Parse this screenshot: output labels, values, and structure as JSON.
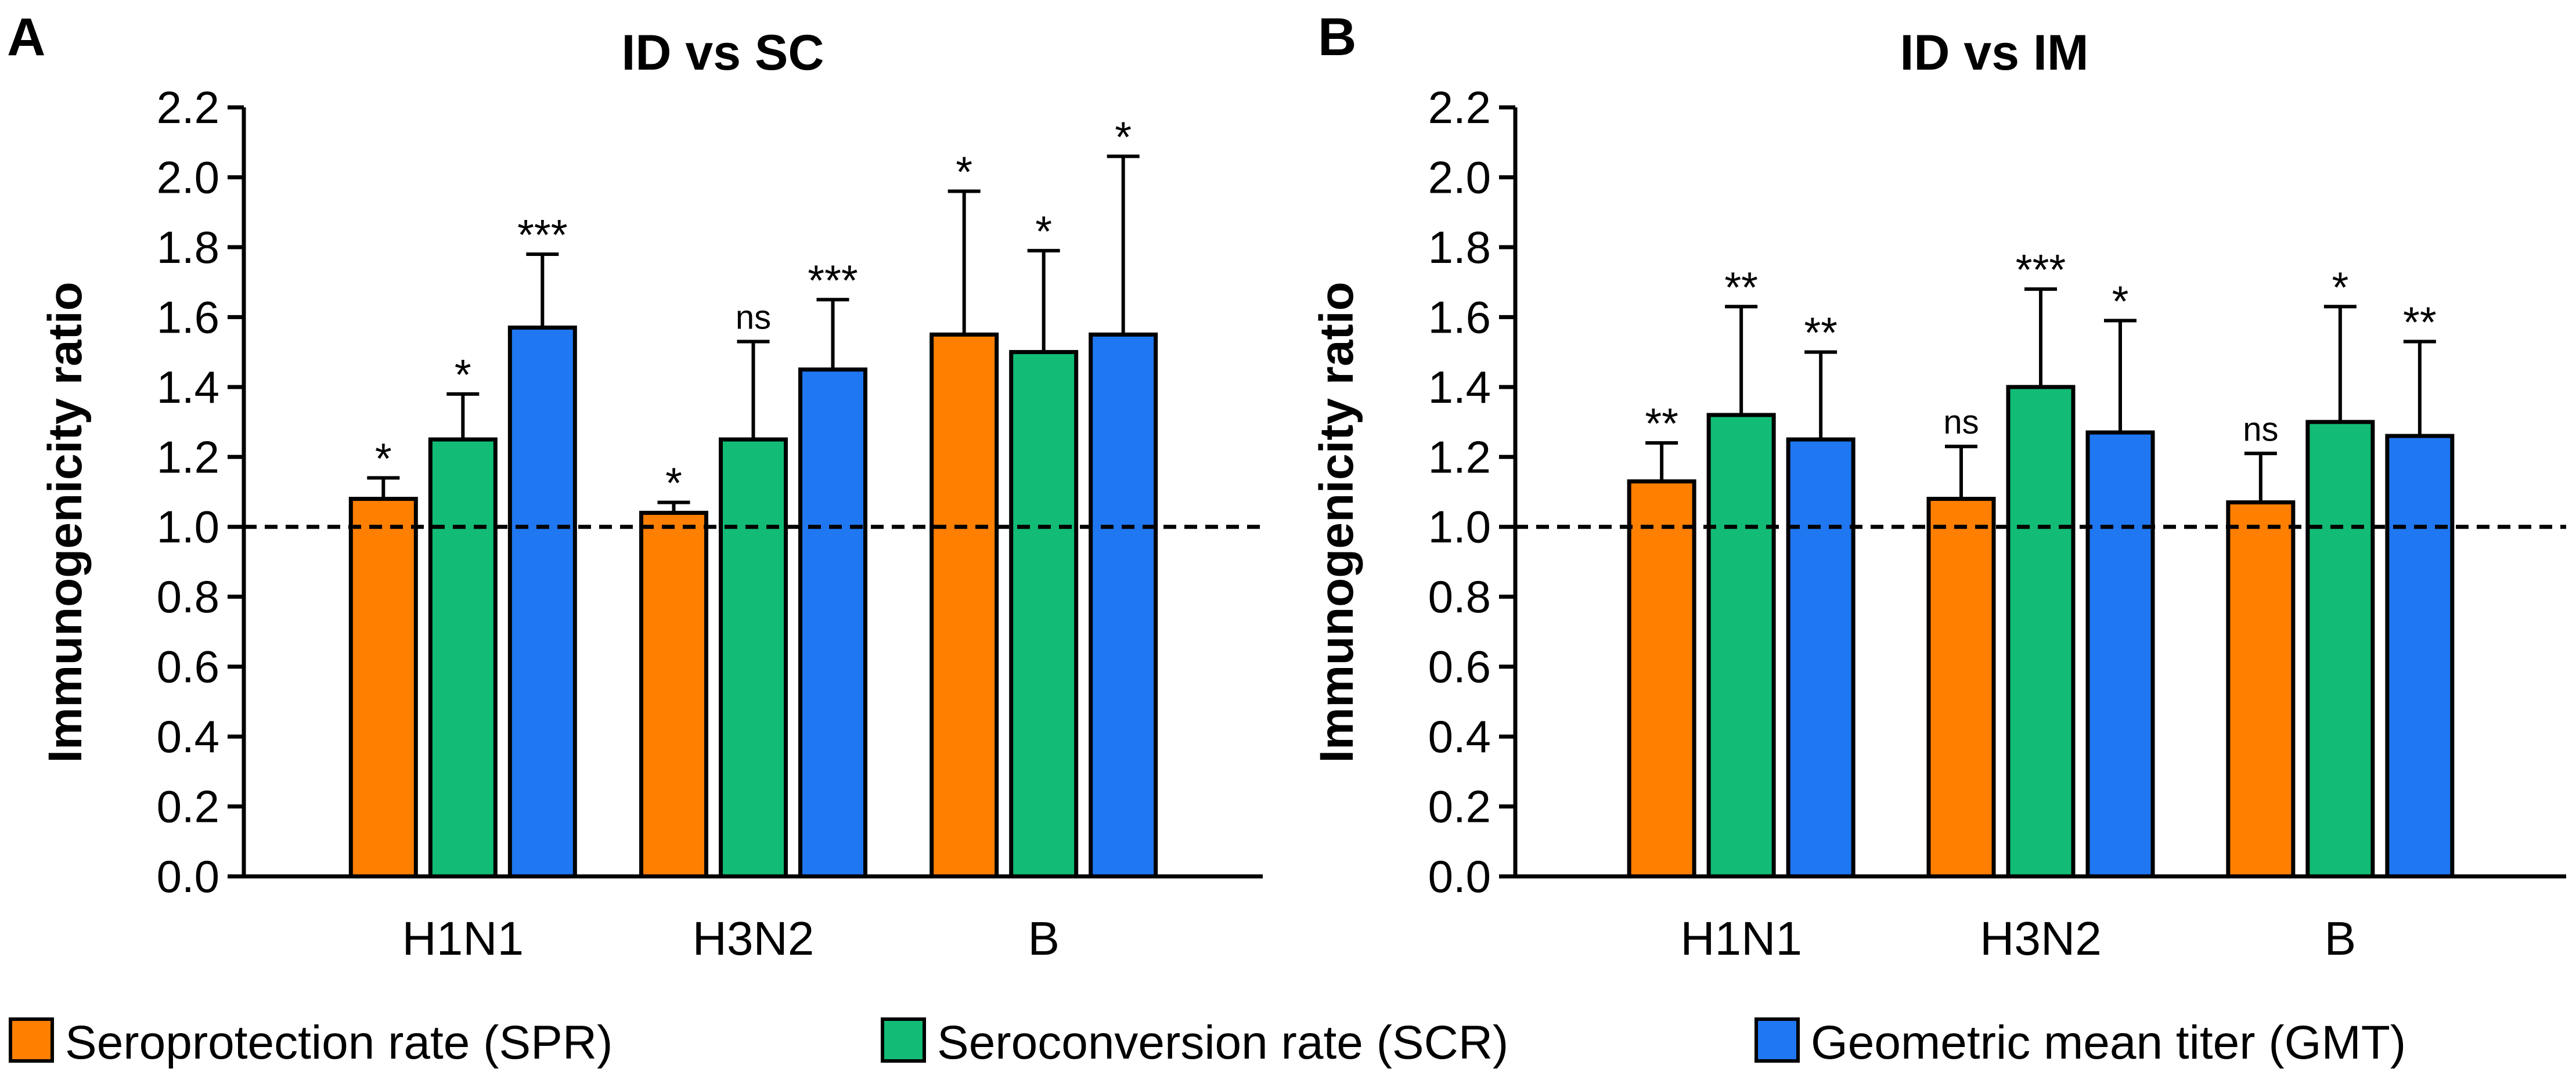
{
  "colors": {
    "spr": "#ff7f00",
    "scr": "#12bc76",
    "gmt": "#1f77f2",
    "axis": "#000000",
    "bar_edge": "#000000"
  },
  "legend": {
    "items": [
      {
        "key": "spr",
        "label": "Seroprotection rate (SPR)"
      },
      {
        "key": "scr",
        "label": "Seroconversion rate (SCR)"
      },
      {
        "key": "gmt",
        "label": "Geometric mean titer (GMT)"
      }
    ]
  },
  "chart_data": [
    {
      "panel": "A",
      "type": "bar",
      "title": "ID vs SC",
      "xlabel": "",
      "ylabel": "Immunogenicity ratio",
      "ylim": [
        0.0,
        2.2
      ],
      "yticks": [
        "0.0",
        "0.2",
        "0.4",
        "0.6",
        "0.8",
        "1.0",
        "1.2",
        "1.4",
        "1.6",
        "1.8",
        "2.0",
        "2.2"
      ],
      "reference_line": 1.0,
      "categories": [
        "H1N1",
        "H3N2",
        "B"
      ],
      "series": [
        {
          "key": "spr",
          "name": "Seroprotection rate (SPR)",
          "values": [
            1.08,
            1.04,
            1.55
          ],
          "error_upper": [
            1.14,
            1.07,
            1.96
          ],
          "significance": [
            "*",
            "*",
            "*"
          ]
        },
        {
          "key": "scr",
          "name": "Seroconversion rate (SCR)",
          "values": [
            1.25,
            1.25,
            1.5
          ],
          "error_upper": [
            1.38,
            1.53,
            1.79
          ],
          "significance": [
            "*",
            "ns",
            "*"
          ]
        },
        {
          "key": "gmt",
          "name": "Geometric mean titer (GMT)",
          "values": [
            1.57,
            1.45,
            1.55
          ],
          "error_upper": [
            1.78,
            1.65,
            2.06
          ],
          "significance": [
            "***",
            "***",
            "*"
          ]
        }
      ]
    },
    {
      "panel": "B",
      "type": "bar",
      "title": "ID vs IM",
      "xlabel": "",
      "ylabel": "Immunogenicity ratio",
      "ylim": [
        0.0,
        2.2
      ],
      "yticks": [
        "0.0",
        "0.2",
        "0.4",
        "0.6",
        "0.8",
        "1.0",
        "1.2",
        "1.4",
        "1.6",
        "1.8",
        "2.0",
        "2.2"
      ],
      "reference_line": 1.0,
      "categories": [
        "H1N1",
        "H3N2",
        "B"
      ],
      "series": [
        {
          "key": "spr",
          "name": "Seroprotection rate (SPR)",
          "values": [
            1.13,
            1.08,
            1.07
          ],
          "error_upper": [
            1.24,
            1.23,
            1.21
          ],
          "significance": [
            "**",
            "ns",
            "ns"
          ]
        },
        {
          "key": "scr",
          "name": "Seroconversion rate (SCR)",
          "values": [
            1.32,
            1.4,
            1.3
          ],
          "error_upper": [
            1.63,
            1.68,
            1.63
          ],
          "significance": [
            "**",
            "***",
            "*"
          ]
        },
        {
          "key": "gmt",
          "name": "Geometric mean titer (GMT)",
          "values": [
            1.25,
            1.27,
            1.26
          ],
          "error_upper": [
            1.5,
            1.59,
            1.53
          ],
          "significance": [
            "**",
            "*",
            "**"
          ]
        }
      ]
    }
  ]
}
